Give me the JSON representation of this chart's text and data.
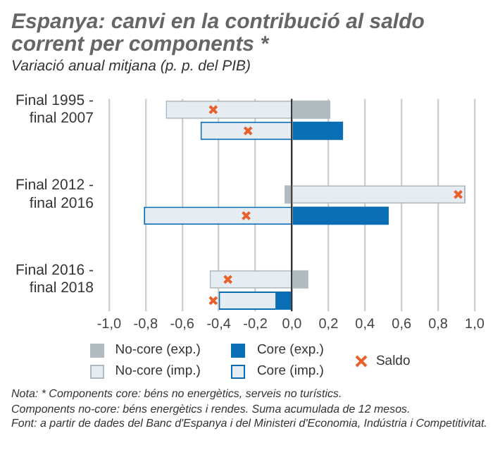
{
  "chart_data": {
    "type": "bar",
    "orientation": "horizontal",
    "stacked": true,
    "title": "Espanya: canvi en la contribució al saldo corrent per components *",
    "subtitle": "Variació anual mitjana (p. p. del PIB)",
    "categories": [
      "Final 1995 - final 2007",
      null,
      null,
      null,
      "Final 2012 - final 2016",
      null,
      null,
      null,
      "Final 2016 - final 2018",
      null
    ],
    "series": [
      {
        "name": "No-core (exp.)",
        "color": "#b1babf",
        "values": [
          0.21,
          null,
          null,
          null,
          -0.04,
          null,
          null,
          null,
          0.09,
          null
        ]
      },
      {
        "name": "No-core (imp.)",
        "color": "#e6edf2",
        "values": [
          -0.69,
          null,
          null,
          null,
          0.95,
          null,
          null,
          null,
          -0.45,
          null
        ]
      },
      {
        "name": "Core (exp.)",
        "color": "#0a6eb4",
        "values": [
          null,
          0.28,
          null,
          null,
          null,
          0.53,
          null,
          null,
          null,
          -0.09
        ]
      },
      {
        "name": "Core (imp.)",
        "color": "#e6edf2",
        "values": [
          null,
          -0.5,
          null,
          null,
          null,
          -0.81,
          null,
          null,
          null,
          -0.31
        ]
      },
      {
        "name": "Saldo",
        "type": "scatter",
        "color": "#e8602c",
        "marker": "cross",
        "values": [
          -0.43,
          -0.24,
          null,
          null,
          0.91,
          -0.25,
          null,
          null,
          -0.35,
          -0.43
        ]
      }
    ],
    "xlim": [
      -1,
      1
    ],
    "xticks": [
      {
        "value": -1,
        "label": "-1,0"
      },
      {
        "value": -0.8,
        "label": "-0,8"
      },
      {
        "value": -0.6,
        "label": "-0,6"
      },
      {
        "value": -0.4,
        "label": "-0,4"
      },
      {
        "value": -0.2,
        "label": "-0,2"
      },
      {
        "value": 0,
        "label": "0,0"
      },
      {
        "value": 0.2,
        "label": "0,2"
      },
      {
        "value": 0.4,
        "label": "0,4"
      },
      {
        "value": 0.6,
        "label": "0,6"
      },
      {
        "value": 0.8,
        "label": "0,8"
      },
      {
        "value": 1,
        "label": "1,0"
      }
    ],
    "grid": "x",
    "legend": "bottom",
    "annotations": [
      "Nota: * Components core: béns no energètics, serveis no turístics.",
      "Components no-core: béns energètics i rendes. Suma acumulada de 12 mesos.",
      "Font: a partir de dades del Banc d'Espanya i del Ministeri d'Economia, Indústria i Competitivitat."
    ]
  }
}
